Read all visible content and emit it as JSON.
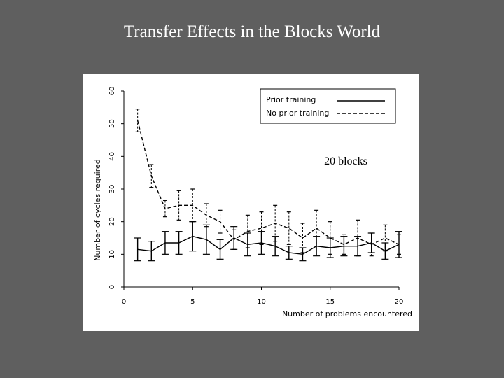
{
  "slide": {
    "title": "Transfer Effects in the Blocks World"
  },
  "chart_data": {
    "type": "line",
    "title": "",
    "annotation": "20 blocks",
    "xlabel": "Number of problems encountered",
    "ylabel": "Number of cycles required",
    "xlim": [
      0,
      20
    ],
    "ylim": [
      0,
      60
    ],
    "xticks": [
      0,
      5,
      10,
      15,
      20
    ],
    "yticks": [
      0,
      10,
      20,
      30,
      40,
      50,
      60
    ],
    "grid": false,
    "legend_position": "top-right",
    "series": [
      {
        "name": "Prior training",
        "style": "solid",
        "x": [
          1,
          2,
          3,
          4,
          5,
          6,
          7,
          8,
          9,
          10,
          11,
          12,
          13,
          14,
          15,
          16,
          17,
          18,
          19,
          20
        ],
        "y": [
          11.5,
          11,
          13.5,
          13.5,
          15.5,
          14.5,
          11.5,
          15,
          13,
          13.5,
          12.5,
          10.5,
          10,
          12.5,
          12,
          12.5,
          12.5,
          13.5,
          11,
          13
        ],
        "err": [
          3.5,
          3,
          3.5,
          3.5,
          4.5,
          4.5,
          3,
          3.5,
          3.5,
          3.5,
          3,
          2,
          2,
          3,
          3,
          3,
          3,
          3,
          2.5,
          4
        ]
      },
      {
        "name": "No prior training",
        "style": "dashed",
        "x": [
          1,
          2,
          3,
          4,
          5,
          6,
          7,
          8,
          9,
          10,
          11,
          12,
          13,
          14,
          15,
          16,
          17,
          18,
          19,
          20
        ],
        "y": [
          51,
          34,
          24,
          25,
          25,
          22,
          20,
          14.5,
          17,
          18,
          19.5,
          18,
          15,
          18,
          15,
          13,
          15,
          13,
          15,
          13
        ],
        "err": [
          3.5,
          3.5,
          2.5,
          4.5,
          5,
          3.5,
          3.5,
          3,
          5,
          5,
          5.5,
          5,
          4.5,
          5.5,
          5,
          3,
          5.5,
          3.5,
          4,
          3
        ]
      }
    ]
  }
}
